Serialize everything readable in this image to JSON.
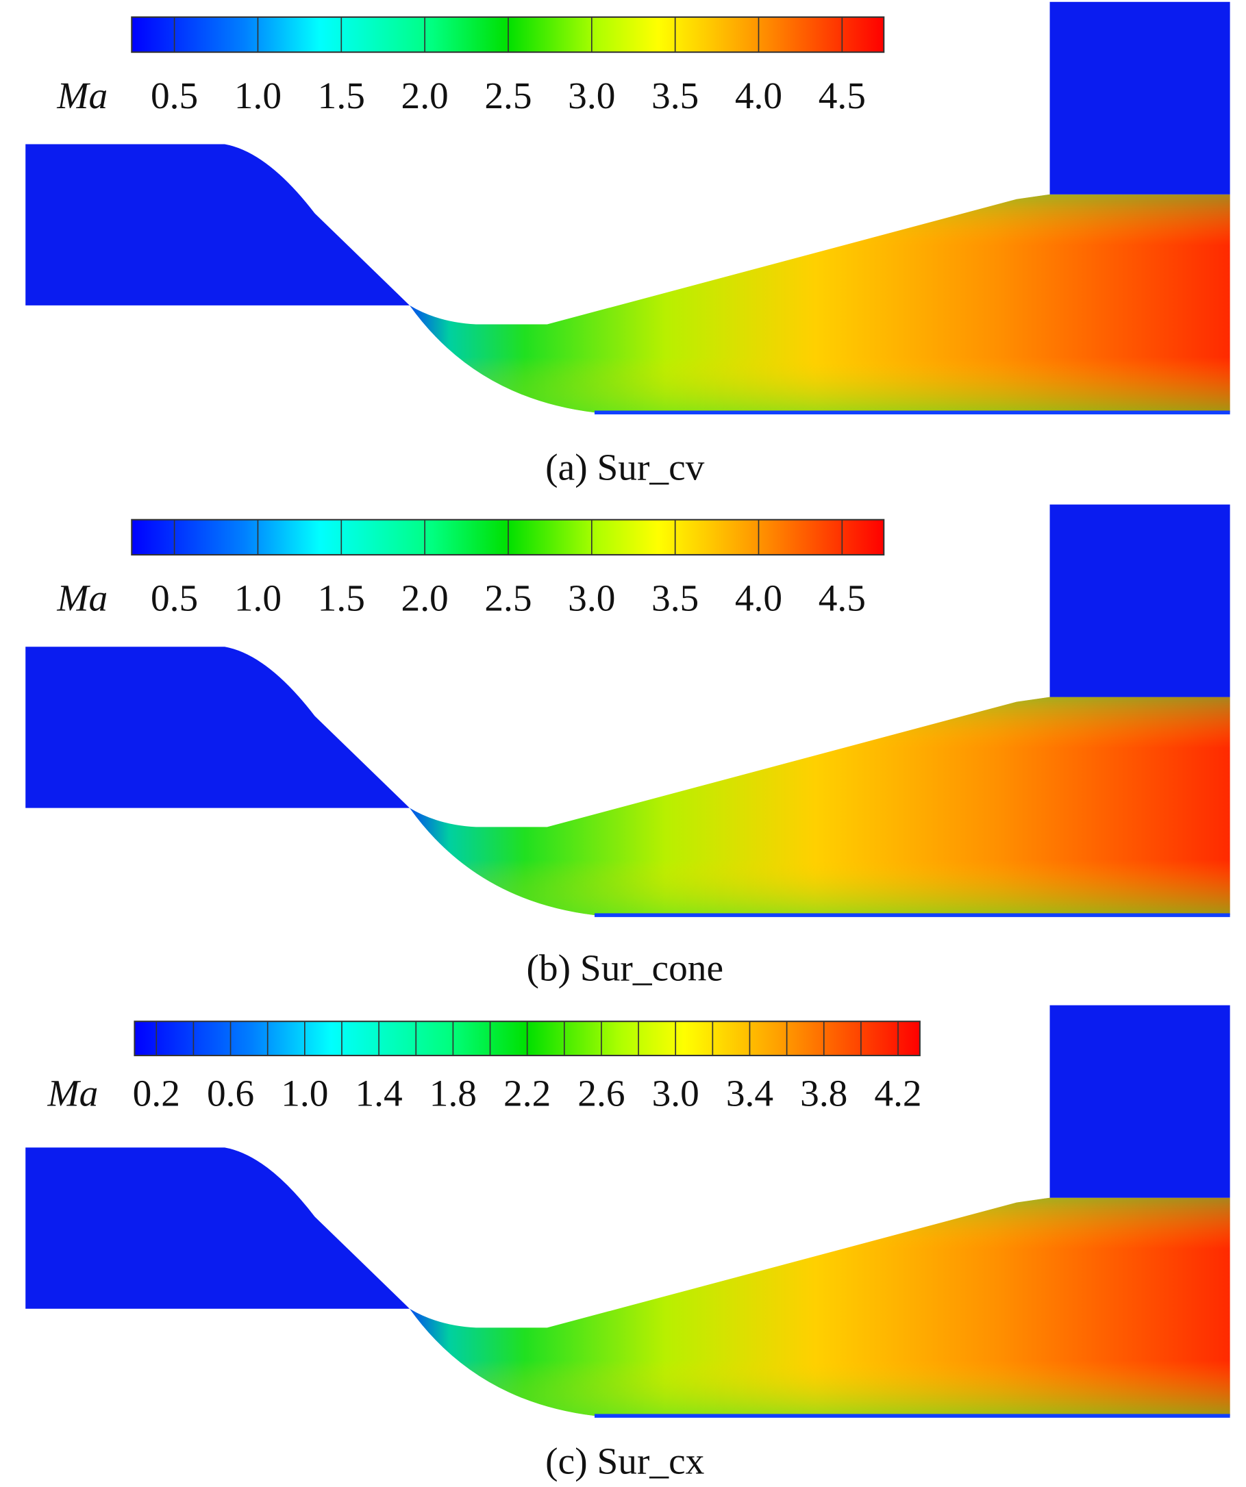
{
  "panels": [
    {
      "colorbar": {
        "label": "Ma",
        "ticks": [
          "0.5",
          "1.0",
          "1.5",
          "2.0",
          "2.5",
          "3.0",
          "3.5",
          "4.0",
          "4.5"
        ]
      },
      "caption": "(a) Sur_cv"
    },
    {
      "colorbar": {
        "label": "Ma",
        "ticks": [
          "0.5",
          "1.0",
          "1.5",
          "2.0",
          "2.5",
          "3.0",
          "3.5",
          "4.0",
          "4.5"
        ]
      },
      "caption": "(b) Sur_cone"
    },
    {
      "colorbar": {
        "label": "Ma",
        "ticks": [
          "0.2",
          "0.6",
          "1.0",
          "1.4",
          "1.8",
          "2.2",
          "2.6",
          "3.0",
          "3.4",
          "3.8",
          "4.2"
        ]
      },
      "caption": "(c) Sur_cx"
    }
  ]
}
